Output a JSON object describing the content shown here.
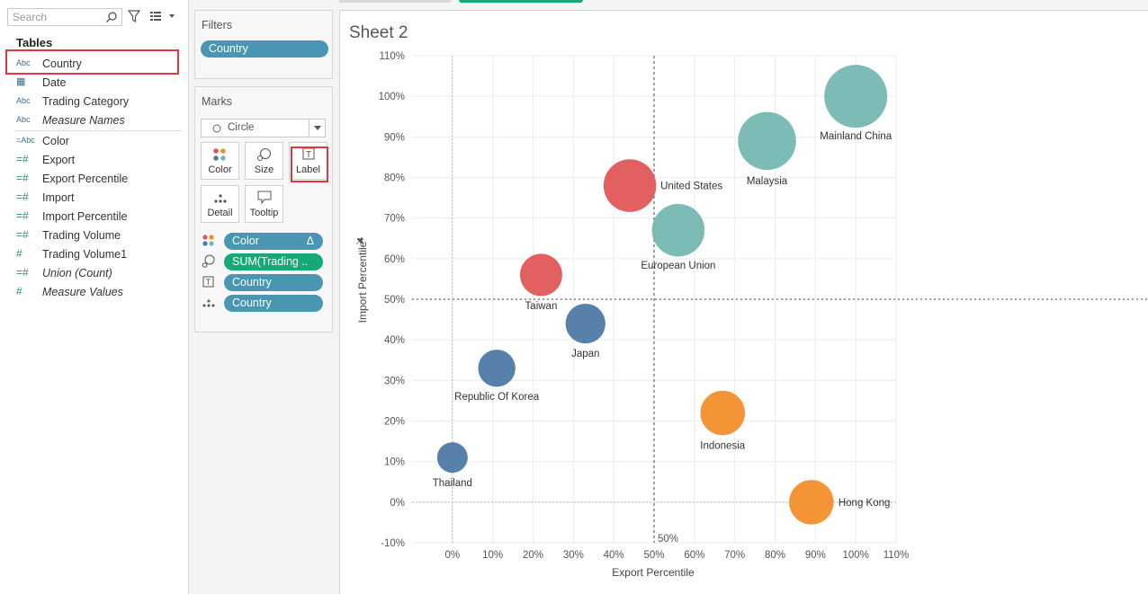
{
  "data_pane": {
    "search_placeholder": "Search",
    "tables_header": "Tables",
    "fields": [
      {
        "type": "Abc",
        "name": "Country",
        "italic": false
      },
      {
        "type": "date",
        "name": "Date",
        "italic": false
      },
      {
        "type": "Abc",
        "name": "Trading Category",
        "italic": false
      },
      {
        "type": "Abc",
        "name": "Measure Names",
        "italic": true
      },
      {
        "type": "=Abc",
        "name": "Color",
        "italic": false
      },
      {
        "type": "=#",
        "name": "Export",
        "italic": false
      },
      {
        "type": "=#",
        "name": "Export Percentile",
        "italic": false
      },
      {
        "type": "=#",
        "name": "Import",
        "italic": false
      },
      {
        "type": "=#",
        "name": "Import Percentile",
        "italic": false
      },
      {
        "type": "=#",
        "name": "Trading Volume",
        "italic": false
      },
      {
        "type": "#",
        "name": "Trading Volume1",
        "italic": false
      },
      {
        "type": "=#",
        "name": "Union (Count)",
        "italic": true
      },
      {
        "type": "#",
        "name": "Measure Values",
        "italic": true
      }
    ]
  },
  "filters": {
    "title": "Filters",
    "pill": "Country"
  },
  "marks": {
    "title": "Marks",
    "mark_type": "Circle",
    "buttons": {
      "color": "Color",
      "size": "Size",
      "label": "Label",
      "detail": "Detail",
      "tooltip": "Tooltip"
    },
    "shelf_pills": [
      {
        "icon": "color",
        "label": "Color",
        "suffix": "Δ",
        "style": "blue"
      },
      {
        "icon": "size",
        "label": "SUM(Trading ..",
        "suffix": "",
        "style": "green"
      },
      {
        "icon": "label",
        "label": "Country",
        "suffix": "",
        "style": "blue"
      },
      {
        "icon": "detail",
        "label": "Country",
        "suffix": "",
        "style": "blue"
      }
    ]
  },
  "sheet": {
    "title": "Sheet 2"
  },
  "colors": {
    "teal": "#76b7b2",
    "red": "#e15759",
    "blue": "#4e79a7",
    "orange": "#f28e2b",
    "highlight": "#e0383e"
  },
  "chart_data": {
    "type": "scatter",
    "xlabel": "Export Percentile",
    "ylabel": "Import Percentile",
    "xlim": [
      -0.1,
      1.1
    ],
    "ylim": [
      -0.1,
      1.1
    ],
    "x_ticks": [
      "0%",
      "10%",
      "20%",
      "30%",
      "40%",
      "50%",
      "60%",
      "70%",
      "80%",
      "90%",
      "100%",
      "110%"
    ],
    "y_ticks": [
      "110%",
      "100%",
      "90%",
      "80%",
      "70%",
      "60%",
      "50%",
      "40%",
      "30%",
      "20%",
      "10%",
      "0%",
      "-10%"
    ],
    "reference_lines": {
      "x": 0.5,
      "y": 0.5,
      "x_label": "50%"
    },
    "size_field": "SUM(Trading Volume)",
    "points": [
      {
        "label": "Mainland China",
        "x": 1.0,
        "y": 1.0,
        "size": 100,
        "color": "teal"
      },
      {
        "label": "Malaysia",
        "x": 0.78,
        "y": 0.89,
        "size": 85,
        "color": "teal"
      },
      {
        "label": "United States",
        "x": 0.44,
        "y": 0.78,
        "size": 70,
        "color": "red"
      },
      {
        "label": "European Union",
        "x": 0.56,
        "y": 0.67,
        "size": 70,
        "color": "teal"
      },
      {
        "label": "Taiwan",
        "x": 0.22,
        "y": 0.56,
        "size": 45,
        "color": "red"
      },
      {
        "label": "Japan",
        "x": 0.33,
        "y": 0.44,
        "size": 40,
        "color": "blue"
      },
      {
        "label": "Republic Of Korea",
        "x": 0.11,
        "y": 0.33,
        "size": 35,
        "color": "blue"
      },
      {
        "label": "Indonesia",
        "x": 0.67,
        "y": 0.22,
        "size": 50,
        "color": "orange"
      },
      {
        "label": "Thailand",
        "x": 0.0,
        "y": 0.11,
        "size": 22,
        "color": "blue"
      },
      {
        "label": "Hong Kong",
        "x": 0.89,
        "y": 0.0,
        "size": 50,
        "color": "orange"
      }
    ]
  }
}
